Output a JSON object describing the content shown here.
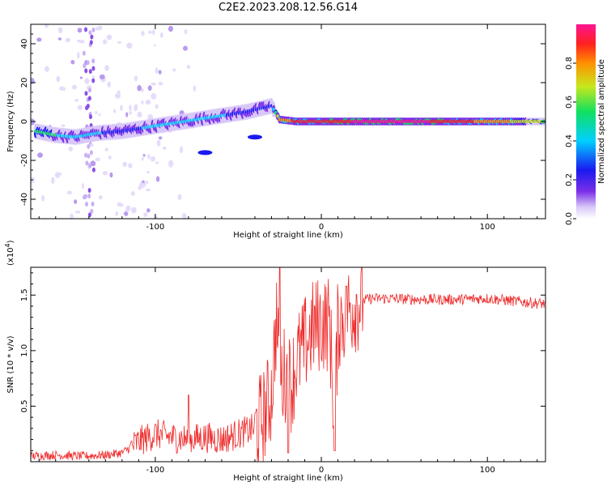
{
  "figure_title": "C2E2.2023.208.12.56.G14",
  "chart_data": [
    {
      "type": "heatmap",
      "title": "",
      "xlabel": "Height of straight line (km)",
      "ylabel": "Frequency (Hz)",
      "xlim": [
        -175,
        135
      ],
      "ylim": [
        -50,
        50
      ],
      "xticks": [
        -100,
        0,
        100
      ],
      "yticks": [
        -40,
        -20,
        0,
        20,
        40
      ],
      "xtick_labels": [
        "-100",
        "0",
        "100"
      ],
      "ytick_labels": [
        "-40",
        "-20",
        "0",
        "20",
        "40"
      ],
      "colorbar": {
        "label": "Normalized spectral amplitude",
        "range": [
          0,
          1
        ],
        "ticks": [
          0.0,
          0.2,
          0.4,
          0.6,
          0.8
        ],
        "tick_labels": [
          "0.0",
          "0.2",
          "0.4",
          "0.6",
          "0.8"
        ],
        "colormap": [
          "#ffffff",
          "#d8c8f8",
          "#7b2fe8",
          "#1a1af0",
          "#00d0ff",
          "#10e060",
          "#c8e81c",
          "#ff9000",
          "#ff2020",
          "#ff1493"
        ]
      },
      "ridge": [
        {
          "x": -172,
          "f": -5,
          "amp": 0.55
        },
        {
          "x": -160,
          "f": -7,
          "amp": 0.5
        },
        {
          "x": -148,
          "f": -8,
          "amp": 0.45
        },
        {
          "x": -135,
          "f": -6,
          "amp": 0.4
        },
        {
          "x": -120,
          "f": -5,
          "amp": 0.35
        },
        {
          "x": -105,
          "f": -3,
          "amp": 0.4
        },
        {
          "x": -90,
          "f": -1,
          "amp": 0.45
        },
        {
          "x": -75,
          "f": 1,
          "amp": 0.45
        },
        {
          "x": -60,
          "f": 3,
          "amp": 0.4
        },
        {
          "x": -45,
          "f": 5,
          "amp": 0.35
        },
        {
          "x": -30,
          "f": 8,
          "amp": 0.3
        },
        {
          "x": -25,
          "f": 1,
          "amp": 0.8
        },
        {
          "x": -15,
          "f": 0,
          "amp": 0.85
        },
        {
          "x": 0,
          "f": 0,
          "amp": 0.9
        },
        {
          "x": 20,
          "f": 0,
          "amp": 0.95
        },
        {
          "x": 60,
          "f": 0,
          "amp": 0.97
        },
        {
          "x": 100,
          "f": 0,
          "amp": 0.8
        },
        {
          "x": 135,
          "f": 0,
          "amp": 0.6
        }
      ],
      "blobs": [
        {
          "x": -70,
          "f": -16,
          "amp": 0.35
        },
        {
          "x": -40,
          "f": -8,
          "amp": 0.3
        }
      ]
    },
    {
      "type": "line",
      "title": "",
      "xlabel": "Height of straight line (km)",
      "ylabel": "SNR (10 * v/v)",
      "scale_label": "(x10^4)",
      "scale_base": "(x10",
      "scale_exp": "4",
      "xlim": [
        -175,
        135
      ],
      "ylim": [
        0.0,
        1.75
      ],
      "xticks": [
        -100,
        0,
        100
      ],
      "yticks": [
        0.5,
        1.0,
        1.5
      ],
      "xtick_labels": [
        "-100",
        "0",
        "100"
      ],
      "ytick_labels": [
        "0.5",
        "1.0",
        "1.5"
      ],
      "series": [
        {
          "name": "SNR",
          "color": "#ee2b2b",
          "x": [
            -175,
            -160,
            -145,
            -130,
            -120,
            -110,
            -100,
            -90,
            -80,
            -70,
            -60,
            -50,
            -40,
            -35,
            -30,
            -27,
            -25,
            -22,
            -18,
            -15,
            -10,
            -5,
            0,
            5,
            8,
            10,
            15,
            20,
            25,
            30,
            40,
            60,
            80,
            100,
            120,
            135
          ],
          "y": [
            0.05,
            0.06,
            0.05,
            0.06,
            0.08,
            0.18,
            0.25,
            0.22,
            0.2,
            0.22,
            0.2,
            0.25,
            0.3,
            0.4,
            0.6,
            1.3,
            0.7,
            0.8,
            0.7,
            0.9,
            1.05,
            1.2,
            1.25,
            1.25,
            0.35,
            1.25,
            1.35,
            1.42,
            1.45,
            1.47,
            1.47,
            1.46,
            1.46,
            1.47,
            1.44,
            1.42
          ],
          "spikes": [
            {
              "x": -25,
              "y": 1.75
            },
            {
              "x": -20,
              "y": 0.08
            },
            {
              "x": 8,
              "y": 0.1
            },
            {
              "x": 15,
              "y": 1.58
            },
            {
              "x": -80,
              "y": 0.6
            }
          ]
        }
      ]
    }
  ]
}
